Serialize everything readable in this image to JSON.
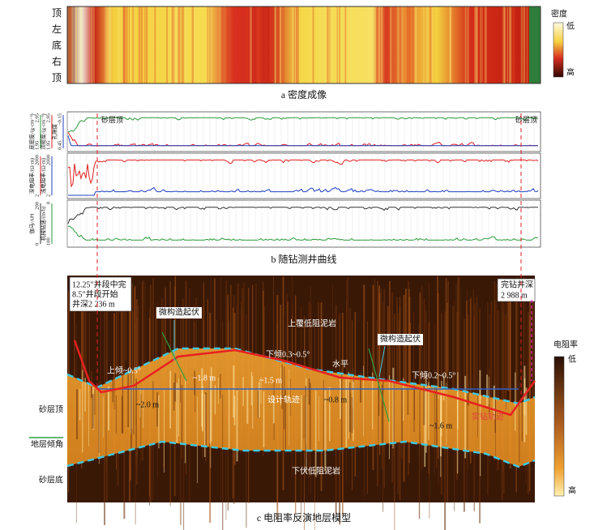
{
  "panel_a": {
    "caption": "a  密度成像",
    "side_labels": [
      "顶",
      "左",
      "底",
      "右",
      "顶"
    ],
    "legend": {
      "title": "密度",
      "low": "低",
      "high": "高"
    }
  },
  "panel_b": {
    "caption": "b  随钻测井曲线",
    "markers": [
      "砂层顶",
      "砂层顶"
    ],
    "tracks": [
      {
        "curves": [
          {
            "name": "底密度/(g·cm⁻³)",
            "min": "1.95",
            "max": "2.95"
          },
          {
            "name": "顶密度/(g·cm⁻³)",
            "min": "1.95",
            "max": "2.95"
          },
          {
            "name": "孔隙度",
            "min": "0.45",
            "max": "−0.15"
          }
        ]
      },
      {
        "curves": [
          {
            "name": "深电阻率/(Ω·m)",
            "min": "2",
            "max": "2000"
          },
          {
            "name": "浅电阻率/(Ω·m)",
            "min": "2",
            "max": "2000"
          }
        ]
      },
      {
        "curves": [
          {
            "name": "伽马/API",
            "min": "0",
            "max": "200"
          },
          {
            "name": "机械钻速/(m/h)",
            "min": "100",
            "max": "0"
          }
        ]
      }
    ]
  },
  "panel_c": {
    "caption": "c  电阻率反演地层模型",
    "start_note": [
      "12.25″井段中完",
      "8.5″井段开始",
      "井深2 236 m"
    ],
    "end_note": [
      "完钻井深",
      "2 988 m"
    ],
    "annotations": [
      "微构造起伏",
      "微构造起伏",
      "上覆低阻泥岩",
      "上倾~0.5°",
      "下倾0.3~0.5°",
      "水平",
      "下倾0.2~0.5°",
      "~1.8 m",
      "~1.5 m",
      "~2.0 m",
      "设计轨迹",
      "~0.8 m",
      "~1.6 m",
      "实钻轨迹",
      "下伏低阻泥岩"
    ],
    "side_labels": [
      "砂层顶",
      "地层倾角",
      "砂层底"
    ],
    "legend": {
      "title": "电阻率",
      "low": "低",
      "high": "高"
    }
  }
}
